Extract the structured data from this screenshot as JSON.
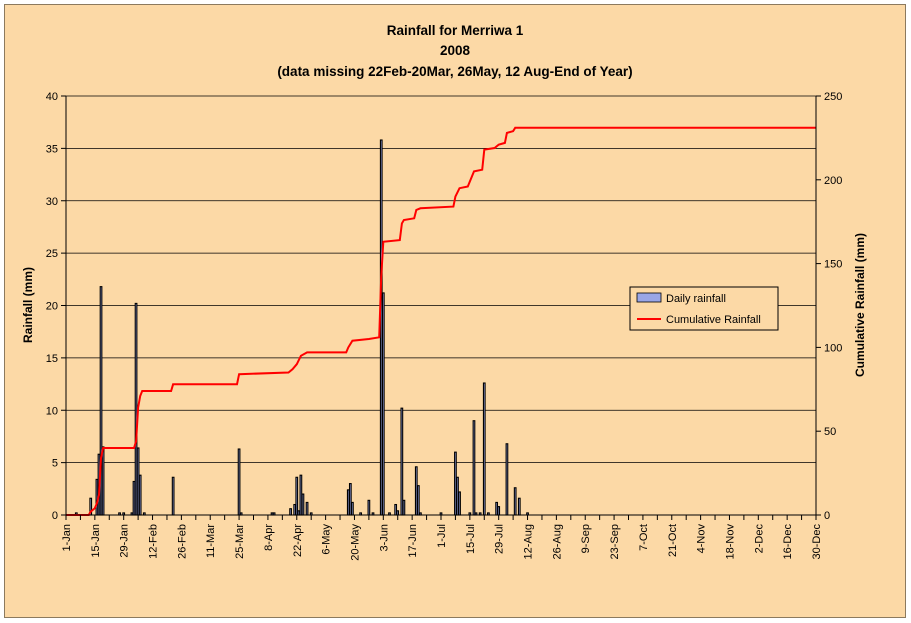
{
  "chart_data": {
    "type": "bar+line",
    "title_lines": [
      "Rainfall for Merriwa 1",
      "2008",
      "(data missing 22Feb-20Mar, 26May, 12 Aug-End of Year)"
    ],
    "ylabel_left": "Rainfall (mm)",
    "ylabel_right": "Cumulative Rainfall (mm)",
    "ylim_left": [
      0,
      40
    ],
    "ylim_right": [
      0,
      250
    ],
    "yticks_left": [
      "0",
      "5",
      "10",
      "15",
      "20",
      "25",
      "30",
      "35",
      "40"
    ],
    "yticks_right": [
      "0",
      "50",
      "100",
      "150",
      "200",
      "250"
    ],
    "x_range_days": [
      0,
      364
    ],
    "xticks": [
      {
        "label": "1-Jan",
        "day": 0
      },
      {
        "label": "15-Jan",
        "day": 14
      },
      {
        "label": "29-Jan",
        "day": 28
      },
      {
        "label": "12-Feb",
        "day": 42
      },
      {
        "label": "26-Feb",
        "day": 56
      },
      {
        "label": "11-Mar",
        "day": 70
      },
      {
        "label": "25-Mar",
        "day": 84
      },
      {
        "label": "8-Apr",
        "day": 98
      },
      {
        "label": "22-Apr",
        "day": 112
      },
      {
        "label": "6-May",
        "day": 126
      },
      {
        "label": "20-May",
        "day": 140
      },
      {
        "label": "3-Jun",
        "day": 154
      },
      {
        "label": "17-Jun",
        "day": 168
      },
      {
        "label": "1-Jul",
        "day": 182
      },
      {
        "label": "15-Jul",
        "day": 196
      },
      {
        "label": "29-Jul",
        "day": 210
      },
      {
        "label": "12-Aug",
        "day": 224
      },
      {
        "label": "26-Aug",
        "day": 238
      },
      {
        "label": "9-Sep",
        "day": 252
      },
      {
        "label": "23-Sep",
        "day": 266
      },
      {
        "label": "7-Oct",
        "day": 280
      },
      {
        "label": "21-Oct",
        "day": 294
      },
      {
        "label": "4-Nov",
        "day": 308
      },
      {
        "label": "18-Nov",
        "day": 322
      },
      {
        "label": "2-Dec",
        "day": 336
      },
      {
        "label": "16-Dec",
        "day": 350
      },
      {
        "label": "30-Dec",
        "day": 364
      }
    ],
    "grid": "horizontal",
    "legend_position": "right",
    "series": [
      {
        "name": "Daily rainfall",
        "kind": "bar",
        "axis": "left",
        "color": "#9AA6E6",
        "points": [
          [
            5,
            0.2
          ],
          [
            12,
            1.6
          ],
          [
            15,
            3.4
          ],
          [
            16,
            5.8
          ],
          [
            17,
            21.8
          ],
          [
            18,
            6.5
          ],
          [
            26,
            0.2
          ],
          [
            28,
            0.2
          ],
          [
            32,
            0.2
          ],
          [
            33,
            3.2
          ],
          [
            34,
            20.2
          ],
          [
            35,
            6.4
          ],
          [
            36,
            3.8
          ],
          [
            38,
            0.2
          ],
          [
            52,
            3.6
          ],
          [
            84,
            6.3
          ],
          [
            85,
            0.2
          ],
          [
            100,
            0.2
          ],
          [
            101,
            0.2
          ],
          [
            109,
            0.6
          ],
          [
            111,
            1.0
          ],
          [
            112,
            3.6
          ],
          [
            113,
            0.4
          ],
          [
            114,
            3.8
          ],
          [
            115,
            2.0
          ],
          [
            117,
            1.2
          ],
          [
            119,
            0.2
          ],
          [
            137,
            2.4
          ],
          [
            138,
            3.0
          ],
          [
            139,
            1.2
          ],
          [
            143,
            0.2
          ],
          [
            147,
            1.4
          ],
          [
            149,
            0.2
          ],
          [
            153,
            35.8
          ],
          [
            154,
            21.2
          ],
          [
            157,
            0.2
          ],
          [
            160,
            1.0
          ],
          [
            161,
            0.4
          ],
          [
            163,
            10.2
          ],
          [
            164,
            1.4
          ],
          [
            170,
            4.6
          ],
          [
            171,
            2.8
          ],
          [
            172,
            0.2
          ],
          [
            182,
            0.2
          ],
          [
            189,
            6.0
          ],
          [
            190,
            3.6
          ],
          [
            191,
            2.2
          ],
          [
            196,
            0.2
          ],
          [
            198,
            9.0
          ],
          [
            199,
            0.2
          ],
          [
            201,
            0.2
          ],
          [
            203,
            12.6
          ],
          [
            205,
            0.2
          ],
          [
            209,
            1.2
          ],
          [
            210,
            0.8
          ],
          [
            214,
            6.8
          ],
          [
            218,
            2.6
          ],
          [
            220,
            1.6
          ],
          [
            224,
            0.2
          ]
        ]
      },
      {
        "name": "Cumulative Rainfall",
        "kind": "line",
        "axis": "right",
        "color": "#FF0000",
        "points": [
          [
            0,
            0
          ],
          [
            11,
            0
          ],
          [
            12,
            2
          ],
          [
            14,
            4
          ],
          [
            15,
            7
          ],
          [
            16,
            12
          ],
          [
            17,
            34
          ],
          [
            18,
            40
          ],
          [
            33,
            40
          ],
          [
            34,
            44
          ],
          [
            35,
            64
          ],
          [
            36,
            71
          ],
          [
            37,
            74
          ],
          [
            51,
            74
          ],
          [
            52,
            78
          ],
          [
            83,
            78
          ],
          [
            84,
            84
          ],
          [
            108,
            85
          ],
          [
            110,
            87
          ],
          [
            112,
            90
          ],
          [
            114,
            95
          ],
          [
            117,
            97
          ],
          [
            136,
            97
          ],
          [
            137,
            100
          ],
          [
            139,
            104
          ],
          [
            147,
            105
          ],
          [
            152,
            106
          ],
          [
            153,
            142
          ],
          [
            154,
            163
          ],
          [
            162,
            164
          ],
          [
            163,
            174
          ],
          [
            164,
            176
          ],
          [
            169,
            177
          ],
          [
            170,
            182
          ],
          [
            172,
            183
          ],
          [
            188,
            184
          ],
          [
            189,
            190
          ],
          [
            191,
            195
          ],
          [
            195,
            196
          ],
          [
            198,
            205
          ],
          [
            202,
            206
          ],
          [
            203,
            218
          ],
          [
            208,
            219
          ],
          [
            210,
            221
          ],
          [
            213,
            222
          ],
          [
            214,
            228
          ],
          [
            217,
            229
          ],
          [
            218,
            231
          ],
          [
            364,
            231
          ]
        ]
      }
    ]
  }
}
